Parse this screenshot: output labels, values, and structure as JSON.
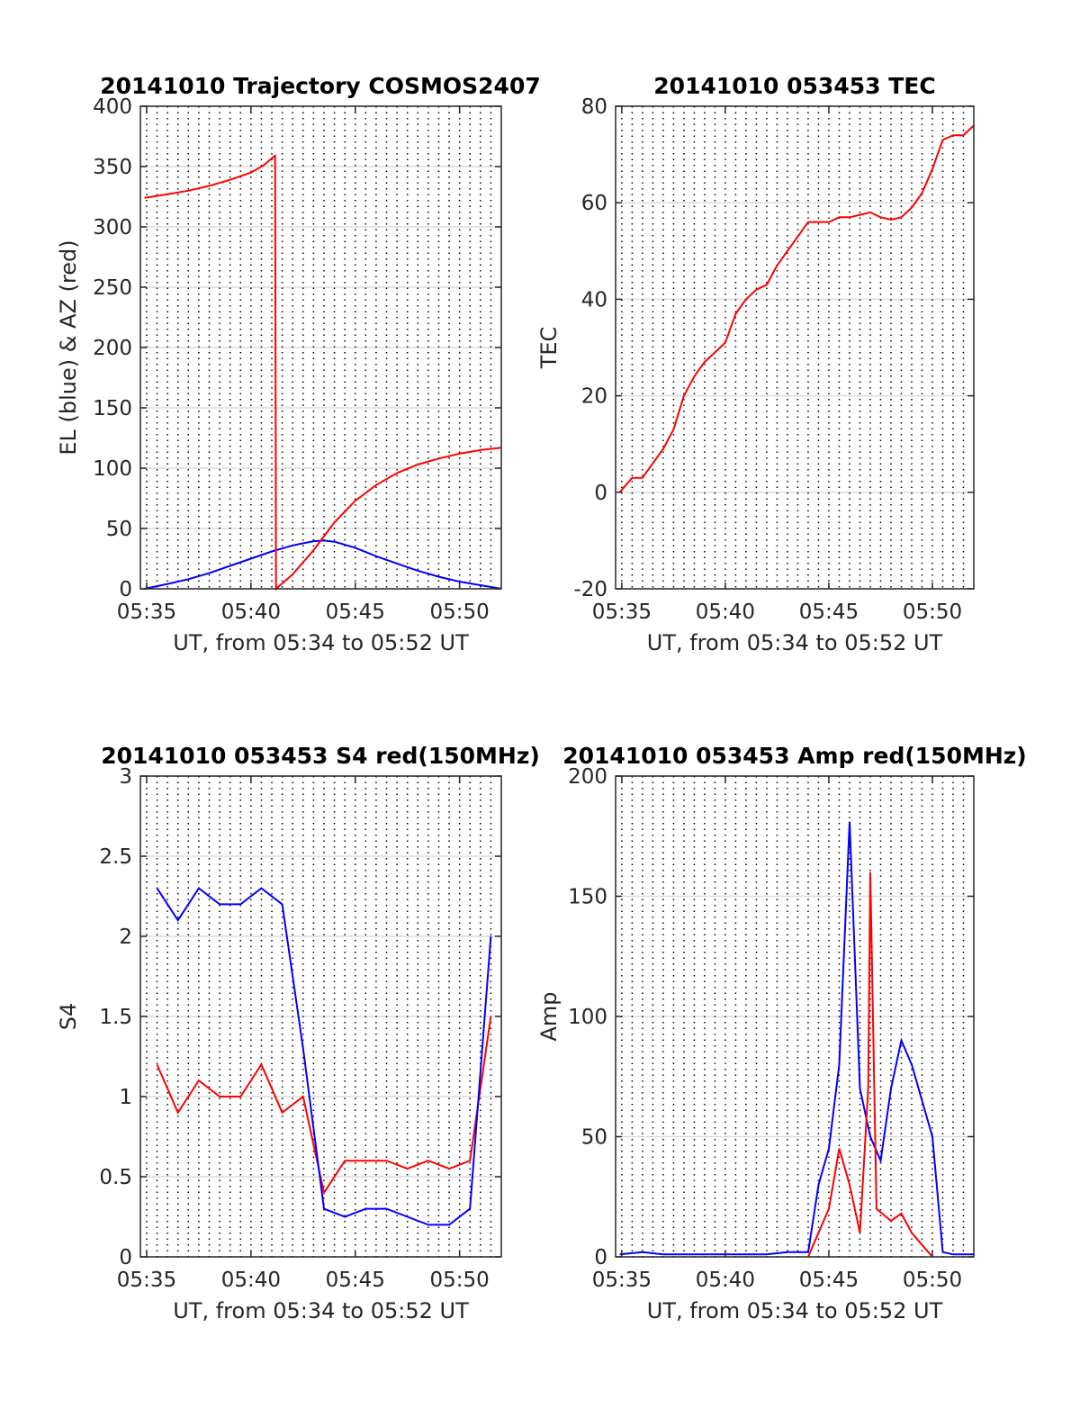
{
  "chart_data": [
    {
      "id": "trajectory",
      "type": "line",
      "title": "20141010 Trajectory COSMOS2407",
      "xlabel": "UT, from 05:34 to 05:52 UT",
      "ylabel": "EL (blue) & AZ (red)",
      "xlim": [
        34.7,
        52.0
      ],
      "ylim": [
        0,
        400
      ],
      "xticks": [
        35,
        40,
        45,
        50
      ],
      "xtick_labels": [
        "05:35",
        "05:40",
        "05:45",
        "05:50"
      ],
      "yticks": [
        0,
        50,
        100,
        150,
        200,
        250,
        300,
        350,
        400
      ],
      "ytick_labels": [
        "0",
        "50",
        "100",
        "150",
        "200",
        "250",
        "300",
        "350",
        "400"
      ],
      "grid": "horizontal solid gray, vertical dotted black every 0.5 min",
      "series": [
        {
          "color": "#0000ff",
          "x": [
            34.9,
            36,
            37,
            38,
            39,
            40,
            41,
            42,
            43,
            43.5,
            44,
            45,
            46,
            47,
            48,
            49,
            50,
            51,
            52
          ],
          "y": [
            0,
            4,
            8,
            13,
            19,
            25,
            31,
            36,
            39.5,
            40,
            39,
            34,
            27,
            21,
            15,
            10,
            6,
            3,
            0
          ]
        },
        {
          "color": "#ff0000",
          "x": [
            34.9,
            36,
            37,
            38,
            39,
            40,
            40.6,
            41.15,
            41.16,
            41.2,
            42,
            43,
            44,
            45,
            46,
            47,
            48,
            49,
            50,
            51,
            52
          ],
          "y": [
            324,
            327,
            330,
            334,
            339,
            345,
            351,
            359,
            359,
            0,
            12,
            32,
            55,
            73,
            86,
            96,
            103,
            108,
            112,
            115,
            117
          ]
        }
      ]
    },
    {
      "id": "tec",
      "type": "line",
      "title": "20141010 053453 TEC",
      "xlabel": "UT, from 05:34 to 05:52 UT",
      "ylabel": "TEC",
      "xlim": [
        34.7,
        52.0
      ],
      "ylim": [
        -20,
        80
      ],
      "xticks": [
        35,
        40,
        45,
        50
      ],
      "xtick_labels": [
        "05:35",
        "05:40",
        "05:45",
        "05:50"
      ],
      "yticks": [
        -20,
        0,
        20,
        40,
        60,
        80
      ],
      "ytick_labels": [
        "-20",
        "0",
        "20",
        "40",
        "60",
        "80"
      ],
      "grid": "horizontal solid gray, vertical dotted black every 0.5 min",
      "series": [
        {
          "color": "#ff0000",
          "x": [
            34.9,
            35.5,
            36,
            36.5,
            37,
            37.5,
            38,
            38.5,
            39,
            39.5,
            40,
            40.5,
            41,
            41.5,
            42,
            42.5,
            43,
            43.5,
            44,
            44.5,
            45,
            45.5,
            46,
            46.5,
            47,
            47.5,
            48,
            48.5,
            49,
            49.5,
            50,
            50.5,
            51,
            51.5,
            52
          ],
          "y": [
            0,
            3,
            3,
            6,
            9,
            13,
            20,
            24,
            27,
            29,
            31,
            37,
            40,
            42,
            43,
            47,
            50,
            53,
            56,
            56,
            56,
            57,
            57,
            57.5,
            58,
            57,
            56.5,
            57,
            59,
            62,
            67,
            73,
            74,
            74,
            76
          ]
        }
      ]
    },
    {
      "id": "s4",
      "type": "line",
      "title": "20141010 053453 S4 red(150MHz)",
      "xlabel": "UT, from 05:34 to 05:52 UT",
      "ylabel": "S4",
      "xlim": [
        34.7,
        52.0
      ],
      "ylim": [
        0,
        3
      ],
      "xticks": [
        35,
        40,
        45,
        50
      ],
      "xtick_labels": [
        "05:35",
        "05:40",
        "05:45",
        "05:50"
      ],
      "yticks": [
        0,
        0.5,
        1,
        1.5,
        2,
        2.5,
        3
      ],
      "ytick_labels": [
        "0",
        "0.5",
        "1",
        "1.5",
        "2",
        "2.5",
        "3"
      ],
      "grid": "horizontal solid gray, vertical dotted black every 0.5 min",
      "series": [
        {
          "color": "#ff0000",
          "x": [
            35.5,
            36.5,
            37.5,
            38.5,
            39.5,
            40.5,
            41.5,
            42.5,
            43.5,
            44.5,
            45.5,
            46.5,
            47.5,
            48.5,
            49.5,
            50.5,
            51.5
          ],
          "y": [
            1.2,
            0.9,
            1.1,
            1.0,
            1.0,
            1.2,
            0.9,
            1.0,
            0.4,
            0.6,
            0.6,
            0.6,
            0.55,
            0.6,
            0.55,
            0.6,
            1.5
          ]
        },
        {
          "color": "#0000ff",
          "x": [
            35.5,
            36.5,
            37.5,
            38.5,
            39.5,
            40.5,
            41.5,
            42.5,
            43.5,
            44.5,
            45.5,
            46.5,
            47.5,
            48.5,
            49.5,
            50.5,
            51.5
          ],
          "y": [
            2.3,
            2.1,
            2.3,
            2.2,
            2.2,
            2.3,
            2.2,
            1.3,
            0.3,
            0.25,
            0.3,
            0.3,
            0.25,
            0.2,
            0.2,
            0.3,
            2.0
          ]
        }
      ]
    },
    {
      "id": "amp",
      "type": "line",
      "title": "20141010 053453 Amp red(150MHz)",
      "xlabel": "UT, from 05:34 to 05:52 UT",
      "ylabel": "Amp",
      "xlim": [
        34.7,
        52.0
      ],
      "ylim": [
        0,
        200
      ],
      "xticks": [
        35,
        40,
        45,
        50
      ],
      "xtick_labels": [
        "05:35",
        "05:40",
        "05:45",
        "05:50"
      ],
      "yticks": [
        0,
        50,
        100,
        150,
        200
      ],
      "ytick_labels": [
        "0",
        "50",
        "100",
        "150",
        "200"
      ],
      "grid": "horizontal solid gray, vertical dotted black every 0.5 min",
      "series": [
        {
          "color": "#0000ff",
          "x": [
            34.9,
            36,
            37,
            38,
            39,
            40,
            41,
            42,
            43,
            44,
            44.5,
            45,
            45.5,
            46,
            46.5,
            47,
            47.5,
            48,
            48.5,
            49,
            49.5,
            50,
            50.5,
            51,
            52
          ],
          "y": [
            1,
            2,
            1,
            1,
            1,
            1,
            1,
            1,
            2,
            2,
            30,
            45,
            80,
            181,
            70,
            50,
            40,
            70,
            90,
            80,
            65,
            50,
            2,
            1,
            1
          ]
        },
        {
          "color": "#ff0000",
          "x": [
            44,
            44.5,
            45,
            45.5,
            46,
            46.5,
            46.9,
            47,
            47.3,
            48,
            48.5,
            49,
            49.5,
            50
          ],
          "y": [
            0,
            10,
            20,
            45,
            30,
            10,
            70,
            160,
            20,
            15,
            18,
            10,
            5,
            0
          ]
        }
      ]
    }
  ]
}
